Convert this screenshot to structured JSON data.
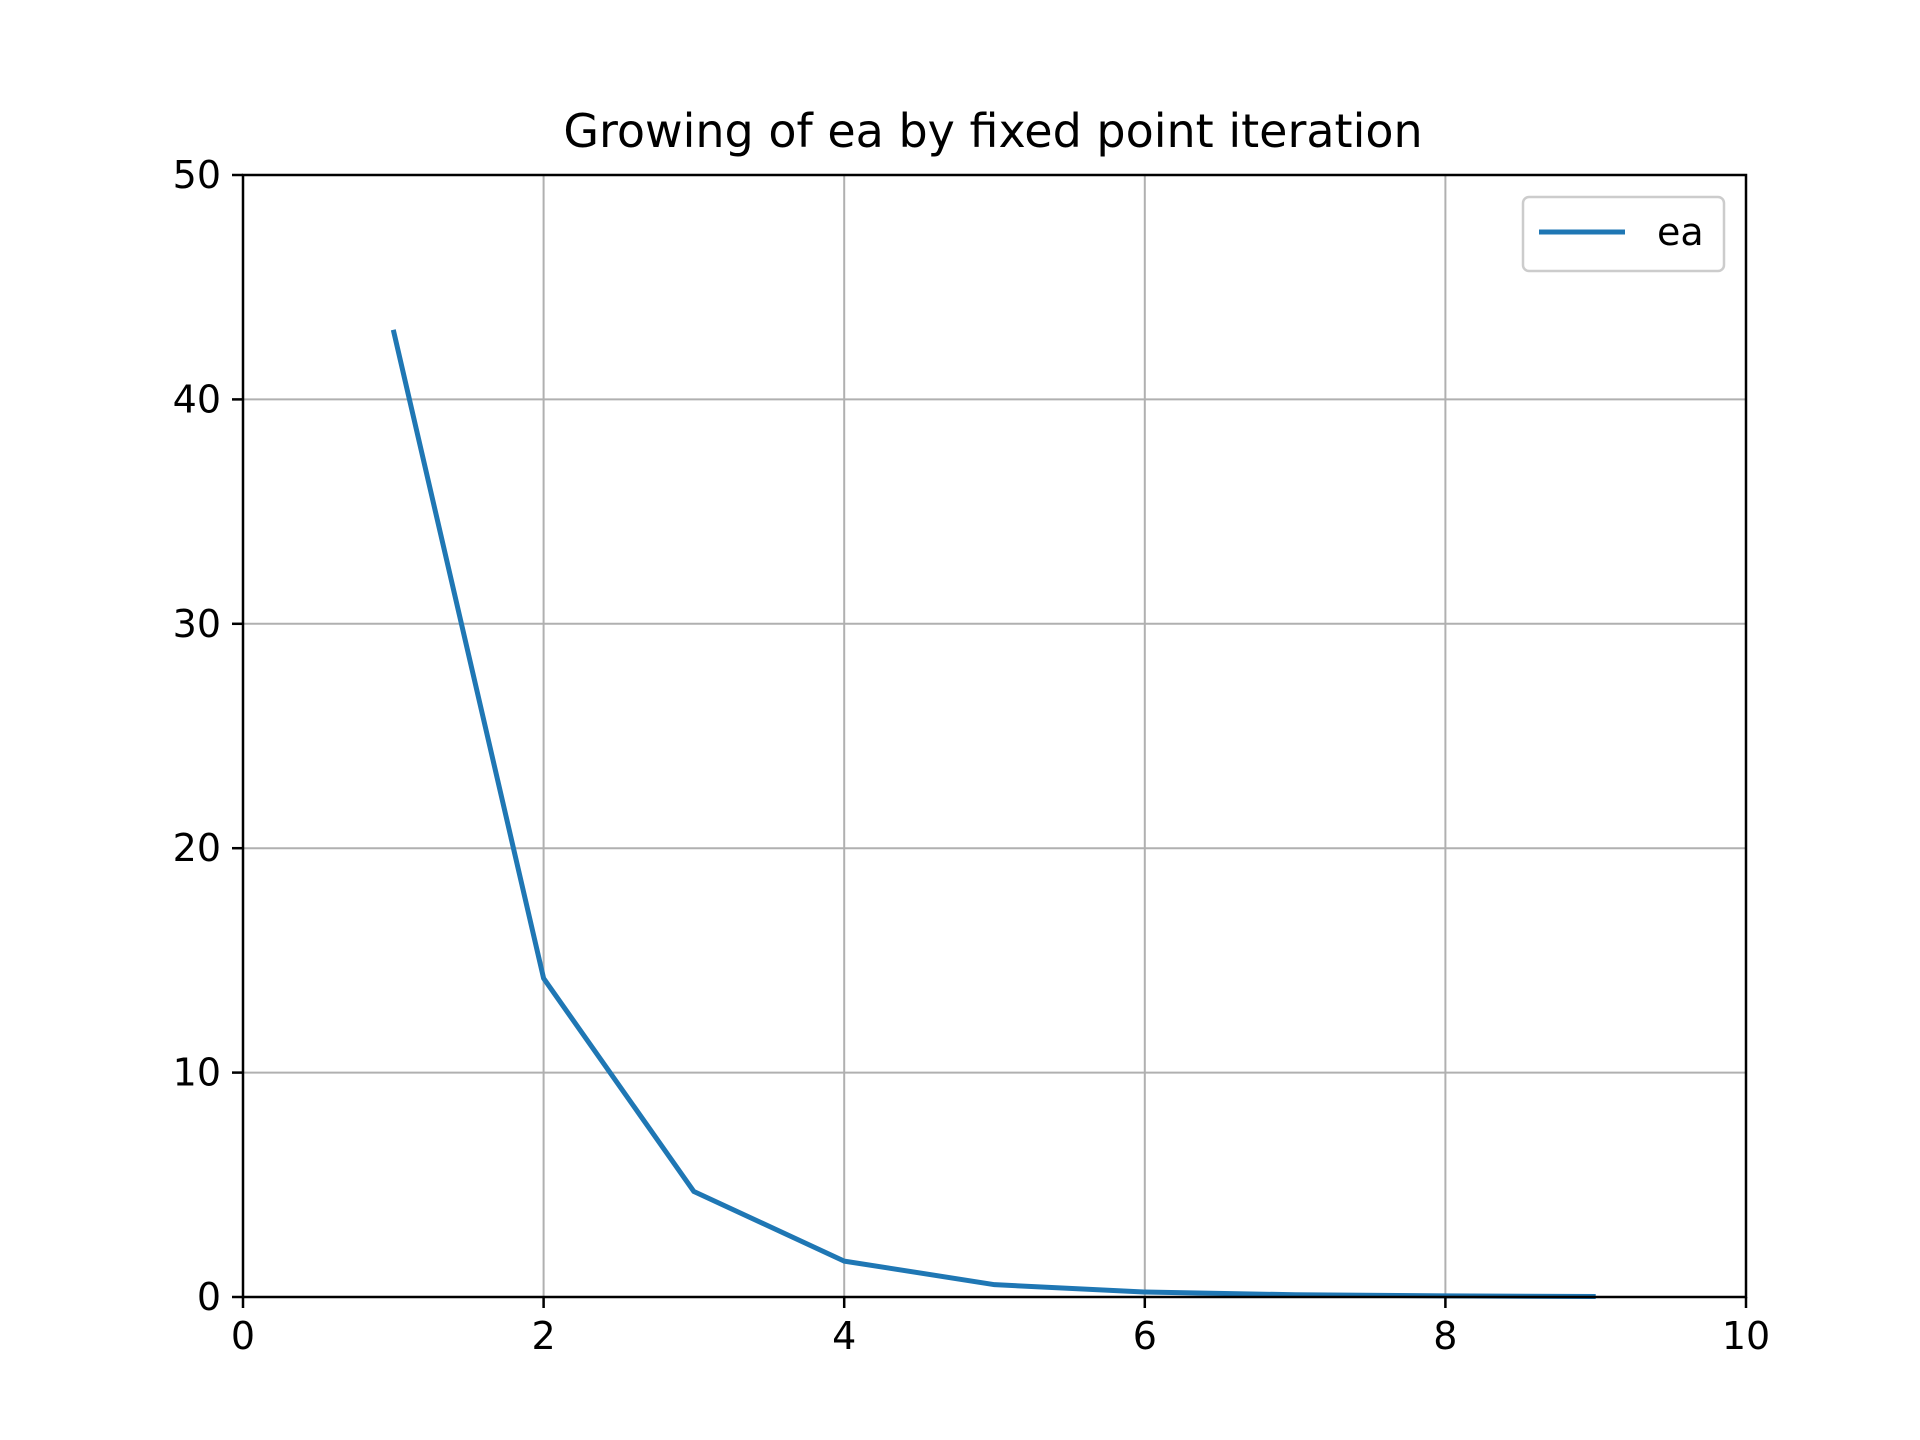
{
  "chart_data": {
    "type": "line",
    "title": "Growing of ea by fixed point iteration",
    "xlabel": "",
    "ylabel": "",
    "xlim": [
      0,
      10
    ],
    "ylim": [
      0,
      50
    ],
    "xticks": [
      0,
      2,
      4,
      6,
      8,
      10
    ],
    "yticks": [
      0,
      10,
      20,
      30,
      40,
      50
    ],
    "xtick_labels": [
      "0",
      "2",
      "4",
      "6",
      "8",
      "10"
    ],
    "ytick_labels": [
      "0",
      "10",
      "20",
      "30",
      "40",
      "50"
    ],
    "grid": true,
    "legend_position": "top-right",
    "series": [
      {
        "name": "ea",
        "color": "#1f77b4",
        "x": [
          1,
          2,
          3,
          4,
          5,
          6,
          7,
          8,
          9
        ],
        "y": [
          43.1,
          14.2,
          4.7,
          1.6,
          0.55,
          0.22,
          0.1,
          0.05,
          0.02
        ]
      }
    ]
  }
}
